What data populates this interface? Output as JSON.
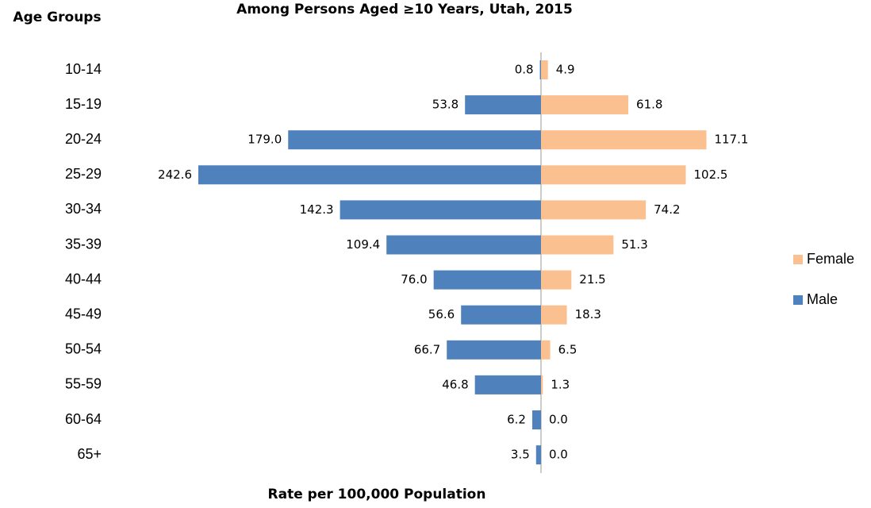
{
  "chart_data": {
    "type": "bar",
    "orientation": "horizontal",
    "title": "Among Persons Aged ≥10 Years, Utah, 2015",
    "y_label": "Age Groups",
    "x_label": "Rate per 100,000 Population",
    "categories": [
      "10-14",
      "15-19",
      "20-24",
      "25-29",
      "30-34",
      "35-39",
      "40-44",
      "45-49",
      "50-54",
      "55-59",
      "60-64",
      "65+"
    ],
    "series": [
      {
        "name": "Female",
        "color": "#fac090",
        "values": [
          4.9,
          61.8,
          117.1,
          102.5,
          74.2,
          51.3,
          21.5,
          18.3,
          6.5,
          1.3,
          0,
          0
        ],
        "value_labels": [
          "4.9",
          "61.8",
          "117.1",
          "102.5",
          "74.2",
          "51.3",
          "21.5",
          "18.3",
          "6.5",
          "1.3",
          "0.0",
          "0.0"
        ]
      },
      {
        "name": "Male",
        "color": "#4f81bd",
        "values": [
          0.8,
          53.8,
          179,
          242.6,
          142.3,
          109.4,
          76,
          56.6,
          66.7,
          46.8,
          6.2,
          3.5
        ],
        "value_labels": [
          "0.8",
          "53.8",
          "179.0",
          "242.6",
          "142.3",
          "109.4",
          "76.0",
          "56.6",
          "66.7",
          "46.8",
          "6.2",
          "3.5"
        ]
      }
    ],
    "legend": "right"
  }
}
